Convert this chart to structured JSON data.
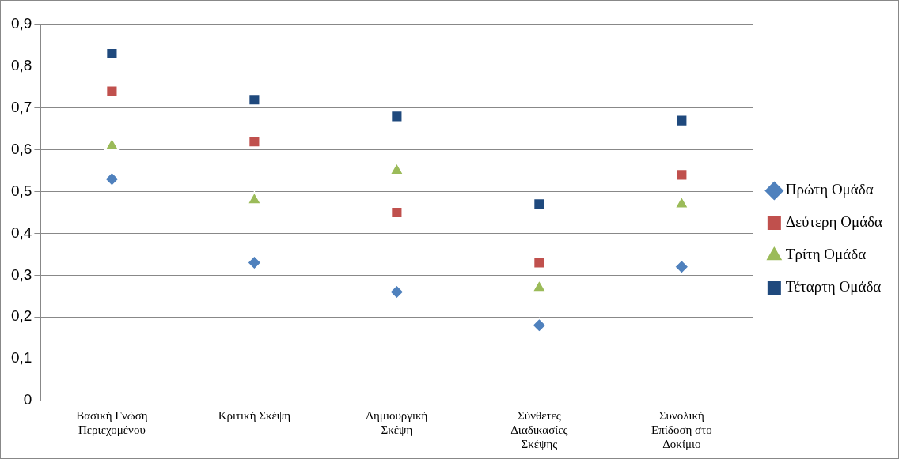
{
  "chart_data": {
    "type": "scatter",
    "categories": [
      "Βασική Γνώση Περιεχομένου",
      "Κριτική Σκέψη",
      "Δημιουργική Σκέψη",
      "Σύνθετες Διαδικασίες Σκέψης",
      "Συνολική Επίδοση στο Δοκίμιο"
    ],
    "series": [
      {
        "name": "Πρώτη Ομάδα",
        "color": "#4f81bd",
        "marker": "diamond",
        "values": [
          0.53,
          0.33,
          0.26,
          0.18,
          0.32
        ]
      },
      {
        "name": "Δεύτερη Ομάδα",
        "color": "#c0504d",
        "marker": "square",
        "values": [
          0.74,
          0.62,
          0.45,
          0.33,
          0.54
        ]
      },
      {
        "name": "Τρίτη Ομάδα",
        "color": "#9bbb59",
        "marker": "triangle",
        "values": [
          0.61,
          0.48,
          0.55,
          0.27,
          0.47
        ]
      },
      {
        "name": "Τέταρτη Ομάδα",
        "color": "#1f497d",
        "marker": "square",
        "values": [
          0.83,
          0.72,
          0.68,
          0.47,
          0.67
        ]
      }
    ],
    "ylim": [
      0,
      0.9
    ],
    "yticks": [
      {
        "value": 0,
        "label": "0"
      },
      {
        "value": 0.1,
        "label": "0,1"
      },
      {
        "value": 0.2,
        "label": "0,2"
      },
      {
        "value": 0.3,
        "label": "0,3"
      },
      {
        "value": 0.4,
        "label": "0,4"
      },
      {
        "value": 0.5,
        "label": "0,5"
      },
      {
        "value": 0.6,
        "label": "0,6"
      },
      {
        "value": 0.7,
        "label": "0,7"
      },
      {
        "value": 0.8,
        "label": "0,8"
      },
      {
        "value": 0.9,
        "label": "0,9"
      }
    ],
    "grid": "y",
    "legend": "right"
  }
}
